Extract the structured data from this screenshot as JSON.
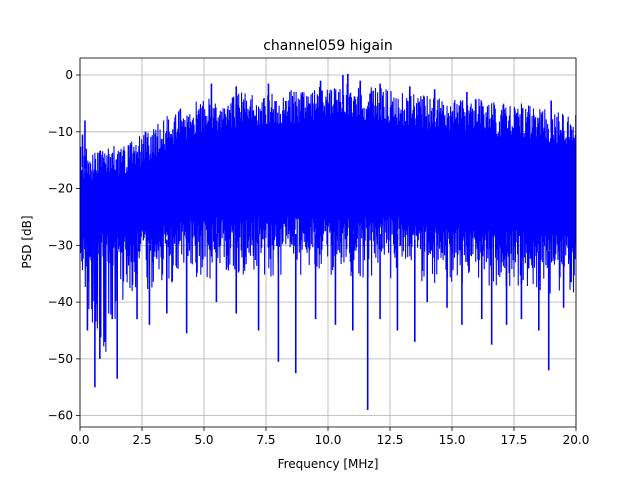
{
  "chart_data": {
    "type": "line",
    "title": "channel059 higain",
    "xlabel": "Frequency [MHz]",
    "ylabel": "PSD [dB]",
    "xlim": [
      0,
      20
    ],
    "ylim": [
      -62,
      3
    ],
    "grid": true,
    "line_color": "#0000ff",
    "x_ticks": [
      0.0,
      2.5,
      5.0,
      7.5,
      10.0,
      12.5,
      15.0,
      17.5,
      20.0
    ],
    "x_tick_labels": [
      "0.0",
      "2.5",
      "5.0",
      "7.5",
      "10.0",
      "12.5",
      "15.0",
      "17.5",
      "20.0"
    ],
    "y_ticks": [
      0,
      -10,
      -20,
      -30,
      -40,
      -50,
      -60
    ],
    "y_tick_labels": [
      "0",
      "−10",
      "−20",
      "−30",
      "−40",
      "−50",
      "−60"
    ],
    "series": [
      {
        "x": [
          0.0,
          0.5,
          1.0,
          1.5,
          2.0,
          2.5,
          3.0,
          3.5,
          4.0,
          4.5,
          5.0,
          5.5,
          6.0,
          6.5,
          7.0,
          7.5,
          8.0,
          8.5,
          9.0,
          9.5,
          10.0,
          10.5,
          11.0,
          11.5,
          12.0,
          12.5,
          13.0,
          13.5,
          14.0,
          14.5,
          15.0,
          15.5,
          16.0,
          16.5,
          17.0,
          17.5,
          18.0,
          18.5,
          19.0,
          19.5,
          20.0
        ],
        "upper": [
          -12,
          -13,
          -13,
          -12,
          -11,
          -10,
          -9,
          -7,
          -6,
          -5,
          -4,
          -4,
          -3.5,
          -3,
          -3,
          -3,
          -3,
          -2.5,
          -2.5,
          -2,
          -2,
          -1,
          -1.5,
          -2,
          -2,
          -2.5,
          -3,
          -3,
          -3.5,
          -3.5,
          -4,
          -4,
          -4,
          -4.5,
          -5,
          -5,
          -5,
          -5.5,
          -6,
          -6.5,
          -7
        ],
        "mid_low": [
          -32,
          -30,
          -31,
          -31,
          -31,
          -30,
          -30,
          -29,
          -29,
          -28,
          -28,
          -28,
          -28,
          -28,
          -28,
          -28,
          -28,
          -28,
          -28,
          -28,
          -28,
          -28,
          -28,
          -28,
          -28,
          -28,
          -28,
          -29,
          -29,
          -29,
          -29,
          -29,
          -30,
          -30,
          -30,
          -30,
          -31,
          -31,
          -31,
          -31,
          -31
        ],
        "lower": [
          -36,
          -42,
          -48,
          -40,
          -37,
          -36,
          -36,
          -36,
          -36,
          -35,
          -35,
          -34,
          -34,
          -34,
          -34,
          -34,
          -34,
          -34,
          -34,
          -34,
          -34,
          -34,
          -34,
          -34,
          -34,
          -34,
          -34,
          -34,
          -35,
          -35,
          -35,
          -35,
          -35,
          -36,
          -36,
          -36,
          -36,
          -37,
          -37,
          -37,
          -38
        ],
        "dips": [
          {
            "x": 0.3,
            "y": -45
          },
          {
            "x": 0.6,
            "y": -55
          },
          {
            "x": 0.8,
            "y": -50
          },
          {
            "x": 1.0,
            "y": -47
          },
          {
            "x": 1.3,
            "y": -43
          },
          {
            "x": 1.5,
            "y": -53.5
          },
          {
            "x": 2.3,
            "y": -43
          },
          {
            "x": 2.8,
            "y": -44
          },
          {
            "x": 3.5,
            "y": -42
          },
          {
            "x": 4.3,
            "y": -45.5
          },
          {
            "x": 5.5,
            "y": -40
          },
          {
            "x": 6.3,
            "y": -42
          },
          {
            "x": 7.2,
            "y": -45
          },
          {
            "x": 8.0,
            "y": -50.5
          },
          {
            "x": 8.7,
            "y": -52.5
          },
          {
            "x": 9.5,
            "y": -43
          },
          {
            "x": 10.3,
            "y": -44
          },
          {
            "x": 11.0,
            "y": -45
          },
          {
            "x": 11.6,
            "y": -59
          },
          {
            "x": 12.1,
            "y": -43
          },
          {
            "x": 12.8,
            "y": -45
          },
          {
            "x": 13.5,
            "y": -47
          },
          {
            "x": 14.0,
            "y": -40
          },
          {
            "x": 14.8,
            "y": -41
          },
          {
            "x": 15.4,
            "y": -44
          },
          {
            "x": 16.2,
            "y": -43
          },
          {
            "x": 16.6,
            "y": -47.5
          },
          {
            "x": 17.2,
            "y": -44
          },
          {
            "x": 17.8,
            "y": -43
          },
          {
            "x": 18.5,
            "y": -45
          },
          {
            "x": 18.9,
            "y": -52
          },
          {
            "x": 19.5,
            "y": -41
          }
        ],
        "peaks": [
          {
            "x": 0.1,
            "y": -10.5
          },
          {
            "x": 0.2,
            "y": -8
          },
          {
            "x": 5.3,
            "y": -1.5
          },
          {
            "x": 6.3,
            "y": -2
          },
          {
            "x": 7.6,
            "y": -1.5
          },
          {
            "x": 9.7,
            "y": -1
          },
          {
            "x": 10.6,
            "y": 0
          },
          {
            "x": 10.8,
            "y": 0.2
          },
          {
            "x": 11.3,
            "y": -1
          },
          {
            "x": 12.1,
            "y": -1.5
          },
          {
            "x": 13.3,
            "y": -2
          },
          {
            "x": 14.3,
            "y": -2.5
          },
          {
            "x": 15.6,
            "y": -3
          },
          {
            "x": 19.0,
            "y": -4.5
          },
          {
            "x": 20.0,
            "y": -7
          }
        ]
      }
    ]
  }
}
